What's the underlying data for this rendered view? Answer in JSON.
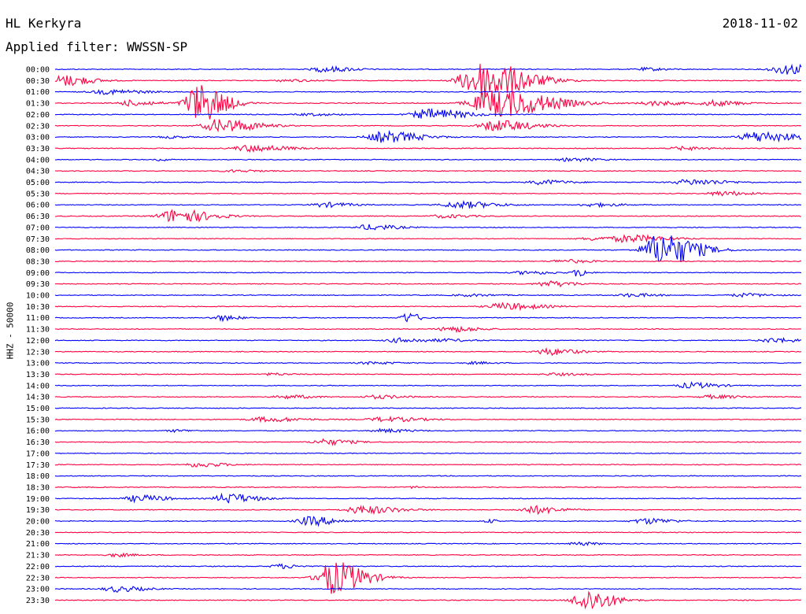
{
  "header": {
    "station": "HL Kerkyra",
    "filter": "Applied filter: WWSSN-SP",
    "date": "2018-11-02"
  },
  "chart_data": {
    "type": "line",
    "title": "HL Kerkyra",
    "subtitle": "Applied filter: WWSSN-SP",
    "ylabel": "HHZ - 50000",
    "date": "2018-11-02",
    "rows": [
      "00:00",
      "00:30",
      "01:00",
      "01:30",
      "02:00",
      "02:30",
      "03:00",
      "03:30",
      "04:00",
      "04:30",
      "05:00",
      "05:30",
      "06:00",
      "06:30",
      "07:00",
      "07:30",
      "08:00",
      "08:30",
      "09:00",
      "09:30",
      "10:00",
      "10:30",
      "11:00",
      "11:30",
      "12:00",
      "12:30",
      "13:00",
      "13:30",
      "14:00",
      "14:30",
      "15:00",
      "15:30",
      "16:00",
      "16:30",
      "17:00",
      "17:30",
      "18:00",
      "18:30",
      "19:00",
      "19:30",
      "20:00",
      "20:30",
      "21:00",
      "21:30",
      "22:00",
      "22:30",
      "23:00",
      "23:30"
    ],
    "row_colors": [
      "#0000ff",
      "#ff0040"
    ],
    "noise_level": 0.07,
    "bursts": [
      {
        "row": 0,
        "t": 0.36,
        "amp": 0.5,
        "w": 0.03
      },
      {
        "row": 0,
        "t": 0.79,
        "amp": 0.25,
        "w": 0.025
      },
      {
        "row": 0,
        "t": 0.98,
        "amp": 0.9,
        "w": 0.04
      },
      {
        "row": 1,
        "t": 0.01,
        "amp": 1.0,
        "w": 0.03
      },
      {
        "row": 1,
        "t": 0.31,
        "amp": 0.2,
        "w": 0.03
      },
      {
        "row": 1,
        "t": 0.57,
        "amp": 3.5,
        "w": 0.05
      },
      {
        "row": 2,
        "t": 0.07,
        "amp": 0.4,
        "w": 0.04
      },
      {
        "row": 3,
        "t": 0.1,
        "amp": 0.5,
        "w": 0.03
      },
      {
        "row": 3,
        "t": 0.19,
        "amp": 3.5,
        "w": 0.03
      },
      {
        "row": 3,
        "t": 0.59,
        "amp": 2.5,
        "w": 0.06
      },
      {
        "row": 3,
        "t": 0.8,
        "amp": 0.4,
        "w": 0.03
      },
      {
        "row": 3,
        "t": 0.88,
        "amp": 0.5,
        "w": 0.03
      },
      {
        "row": 4,
        "t": 0.5,
        "amp": 1.0,
        "w": 0.04
      },
      {
        "row": 4,
        "t": 0.34,
        "amp": 0.2,
        "w": 0.03
      },
      {
        "row": 5,
        "t": 0.22,
        "amp": 1.2,
        "w": 0.04
      },
      {
        "row": 5,
        "t": 0.59,
        "amp": 1.0,
        "w": 0.04
      },
      {
        "row": 6,
        "t": 0.44,
        "amp": 1.0,
        "w": 0.04
      },
      {
        "row": 6,
        "t": 0.94,
        "amp": 1.0,
        "w": 0.04
      },
      {
        "row": 6,
        "t": 0.15,
        "amp": 0.2,
        "w": 0.02
      },
      {
        "row": 7,
        "t": 0.26,
        "amp": 0.6,
        "w": 0.04
      },
      {
        "row": 7,
        "t": 0.84,
        "amp": 0.3,
        "w": 0.03
      },
      {
        "row": 8,
        "t": 0.69,
        "amp": 0.3,
        "w": 0.03
      },
      {
        "row": 8,
        "t": 0.14,
        "amp": 0.2,
        "w": 0.01
      },
      {
        "row": 9,
        "t": 0.24,
        "amp": 0.2,
        "w": 0.03
      },
      {
        "row": 10,
        "t": 0.65,
        "amp": 0.4,
        "w": 0.03
      },
      {
        "row": 10,
        "t": 0.85,
        "amp": 0.5,
        "w": 0.04
      },
      {
        "row": 11,
        "t": 0.89,
        "amp": 0.4,
        "w": 0.03
      },
      {
        "row": 12,
        "t": 0.36,
        "amp": 0.4,
        "w": 0.03
      },
      {
        "row": 12,
        "t": 0.54,
        "amp": 0.6,
        "w": 0.04
      },
      {
        "row": 12,
        "t": 0.72,
        "amp": 0.3,
        "w": 0.03
      },
      {
        "row": 13,
        "t": 0.16,
        "amp": 1.2,
        "w": 0.04
      },
      {
        "row": 13,
        "t": 0.52,
        "amp": 0.3,
        "w": 0.03
      },
      {
        "row": 14,
        "t": 0.42,
        "amp": 0.5,
        "w": 0.03
      },
      {
        "row": 15,
        "t": 0.77,
        "amp": 0.6,
        "w": 0.04
      },
      {
        "row": 15,
        "t": 0.72,
        "amp": 0.3,
        "w": 0.03
      },
      {
        "row": 16,
        "t": 0.81,
        "amp": 3.0,
        "w": 0.04
      },
      {
        "row": 17,
        "t": 0.68,
        "amp": 0.3,
        "w": 0.03
      },
      {
        "row": 18,
        "t": 0.63,
        "amp": 0.3,
        "w": 0.03
      },
      {
        "row": 18,
        "t": 0.7,
        "amp": 0.8,
        "w": 0.01
      },
      {
        "row": 19,
        "t": 0.66,
        "amp": 0.5,
        "w": 0.03
      },
      {
        "row": 20,
        "t": 0.55,
        "amp": 0.2,
        "w": 0.03
      },
      {
        "row": 20,
        "t": 0.77,
        "amp": 0.3,
        "w": 0.03
      },
      {
        "row": 20,
        "t": 0.92,
        "amp": 0.3,
        "w": 0.03
      },
      {
        "row": 21,
        "t": 0.6,
        "amp": 0.6,
        "w": 0.04
      },
      {
        "row": 22,
        "t": 0.22,
        "amp": 0.5,
        "w": 0.02
      },
      {
        "row": 22,
        "t": 0.47,
        "amp": 0.9,
        "w": 0.015
      },
      {
        "row": 23,
        "t": 0.53,
        "amp": 0.5,
        "w": 0.03
      },
      {
        "row": 24,
        "t": 0.46,
        "amp": 0.4,
        "w": 0.03
      },
      {
        "row": 24,
        "t": 0.52,
        "amp": 0.2,
        "w": 0.03
      },
      {
        "row": 24,
        "t": 0.96,
        "amp": 0.4,
        "w": 0.03
      },
      {
        "row": 25,
        "t": 0.66,
        "amp": 0.6,
        "w": 0.03
      },
      {
        "row": 26,
        "t": 0.42,
        "amp": 0.2,
        "w": 0.03
      },
      {
        "row": 26,
        "t": 0.56,
        "amp": 0.2,
        "w": 0.02
      },
      {
        "row": 27,
        "t": 0.29,
        "amp": 0.2,
        "w": 0.02
      },
      {
        "row": 27,
        "t": 0.67,
        "amp": 0.2,
        "w": 0.03
      },
      {
        "row": 28,
        "t": 0.85,
        "amp": 0.5,
        "w": 0.03
      },
      {
        "row": 29,
        "t": 0.31,
        "amp": 0.3,
        "w": 0.03
      },
      {
        "row": 29,
        "t": 0.43,
        "amp": 0.3,
        "w": 0.03
      },
      {
        "row": 29,
        "t": 0.88,
        "amp": 0.3,
        "w": 0.03
      },
      {
        "row": 31,
        "t": 0.28,
        "amp": 0.4,
        "w": 0.04
      },
      {
        "row": 31,
        "t": 0.44,
        "amp": 0.4,
        "w": 0.04
      },
      {
        "row": 32,
        "t": 0.16,
        "amp": 0.2,
        "w": 0.02
      },
      {
        "row": 32,
        "t": 0.44,
        "amp": 0.3,
        "w": 0.03
      },
      {
        "row": 33,
        "t": 0.36,
        "amp": 0.5,
        "w": 0.03
      },
      {
        "row": 35,
        "t": 0.19,
        "amp": 0.4,
        "w": 0.03
      },
      {
        "row": 37,
        "t": 0.48,
        "amp": 0.2,
        "w": 0.01
      },
      {
        "row": 38,
        "t": 0.11,
        "amp": 0.6,
        "w": 0.03
      },
      {
        "row": 38,
        "t": 0.23,
        "amp": 0.9,
        "w": 0.03
      },
      {
        "row": 39,
        "t": 0.41,
        "amp": 0.7,
        "w": 0.04
      },
      {
        "row": 39,
        "t": 0.64,
        "amp": 0.7,
        "w": 0.03
      },
      {
        "row": 40,
        "t": 0.34,
        "amp": 0.8,
        "w": 0.03
      },
      {
        "row": 40,
        "t": 0.58,
        "amp": 0.3,
        "w": 0.01
      },
      {
        "row": 40,
        "t": 0.79,
        "amp": 0.5,
        "w": 0.03
      },
      {
        "row": 42,
        "t": 0.7,
        "amp": 0.3,
        "w": 0.02
      },
      {
        "row": 43,
        "t": 0.08,
        "amp": 0.3,
        "w": 0.02
      },
      {
        "row": 44,
        "t": 0.3,
        "amp": 0.4,
        "w": 0.02
      },
      {
        "row": 45,
        "t": 0.37,
        "amp": 3.0,
        "w": 0.035
      },
      {
        "row": 46,
        "t": 0.08,
        "amp": 0.5,
        "w": 0.03
      },
      {
        "row": 47,
        "t": 0.71,
        "amp": 2.0,
        "w": 0.03
      }
    ]
  }
}
